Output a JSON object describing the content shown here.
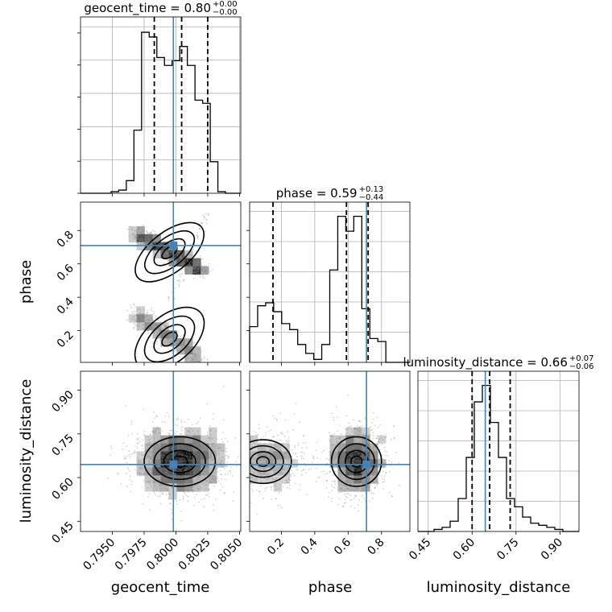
{
  "chart_data": {
    "type": "corner",
    "parameters": [
      "geocent_time",
      "phase",
      "luminosity_distance"
    ],
    "truths": {
      "geocent_time": 0.7998,
      "phase": 0.71,
      "luminosity_distance": 0.645
    },
    "titles": [
      {
        "param": "geocent_time",
        "text": "geocent_time = 0.80",
        "plus": "+0.00",
        "minus": "−0.00"
      },
      {
        "param": "phase",
        "text": "phase = 0.59",
        "plus": "+0.13",
        "minus": "−0.44"
      },
      {
        "param": "luminosity_distance",
        "text": "luminosity_distance = 0.66",
        "plus": "+0.07",
        "minus": "−0.06"
      }
    ],
    "ranges": {
      "geocent_time": [
        0.7925,
        0.8051
      ],
      "phase": [
        0.01,
        0.97
      ],
      "luminosity_distance": [
        0.415,
        0.965
      ]
    },
    "ticks": {
      "geocent_time": [
        "0.7950",
        "0.7975",
        "0.8000",
        "0.8025",
        "0.8050"
      ],
      "phase": [
        "0.2",
        "0.4",
        "0.6",
        "0.8"
      ],
      "luminosity_distance": [
        "0.45",
        "0.60",
        "0.75",
        "0.90"
      ]
    },
    "quantiles": {
      "geocent_time": [
        0.7983,
        0.80045,
        0.8025
      ],
      "phase": [
        0.15,
        0.59,
        0.72
      ],
      "luminosity_distance": [
        0.6,
        0.66,
        0.73
      ]
    },
    "histograms": {
      "geocent_time": {
        "edges_start": 0.7925,
        "bin_width": 0.0006,
        "counts": [
          0,
          0,
          0,
          0,
          1,
          2,
          8,
          40,
          102,
          99,
          86,
          81,
          84,
          93,
          81,
          59,
          57,
          20,
          1,
          0,
          0
        ]
      },
      "phase": {
        "edges_start": 0.01,
        "bin_width": 0.048,
        "counts": [
          12,
          19,
          20,
          17,
          13,
          11,
          6,
          3,
          1,
          6,
          31,
          49,
          44,
          49,
          18,
          8,
          7,
          0,
          0,
          0
        ]
      },
      "luminosity_distance": {
        "edges_start": 0.415,
        "bin_width": 0.0275,
        "counts": [
          0,
          0,
          1,
          2,
          5,
          16,
          36,
          63,
          71,
          53,
          36,
          16,
          12,
          7,
          4,
          3,
          2,
          1,
          0,
          0
        ]
      }
    },
    "grid": true,
    "colors": {
      "truth": "#4682b4",
      "hist": "#000000",
      "points": "#808080",
      "quantile": "#000000"
    }
  }
}
